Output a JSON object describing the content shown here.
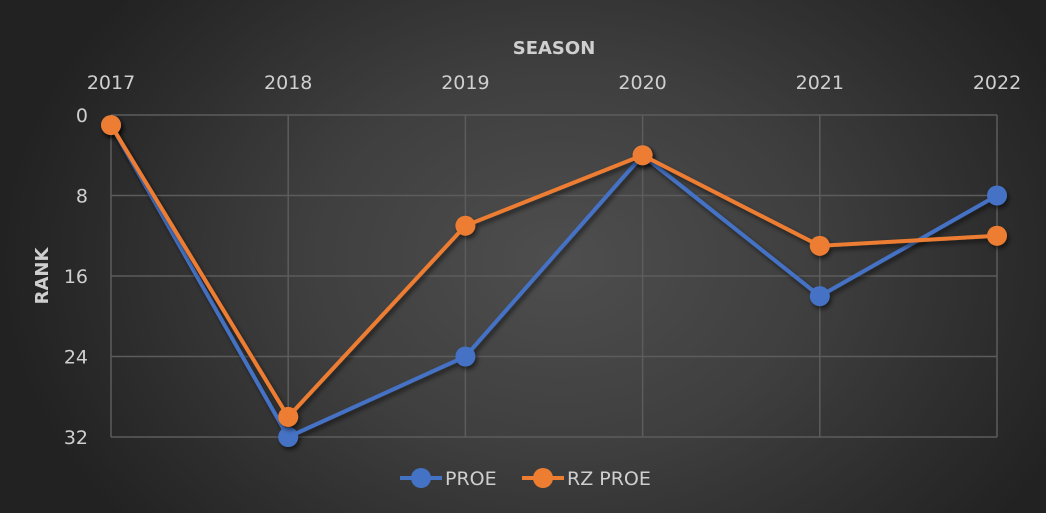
{
  "chart_data": {
    "type": "line",
    "title": "",
    "xlabel": "SEASON",
    "ylabel": "RANK",
    "categories": [
      "2017",
      "2018",
      "2019",
      "2020",
      "2021",
      "2022"
    ],
    "series": [
      {
        "name": "PROE",
        "color": "#4472c4",
        "values": [
          1,
          32,
          24,
          4,
          18,
          8
        ]
      },
      {
        "name": "RZ PROE",
        "color": "#ed7d31",
        "values": [
          1,
          30,
          11,
          4,
          13,
          12
        ]
      }
    ],
    "yticks": [
      "0",
      "8",
      "16",
      "24",
      "32"
    ],
    "ylim": [
      0,
      32
    ],
    "y_reversed": true,
    "x_axis_position": "top",
    "grid": true,
    "legend_position": "bottom"
  },
  "colors": {
    "grid": "#5c5c5c",
    "text": "#cfcfcf"
  }
}
